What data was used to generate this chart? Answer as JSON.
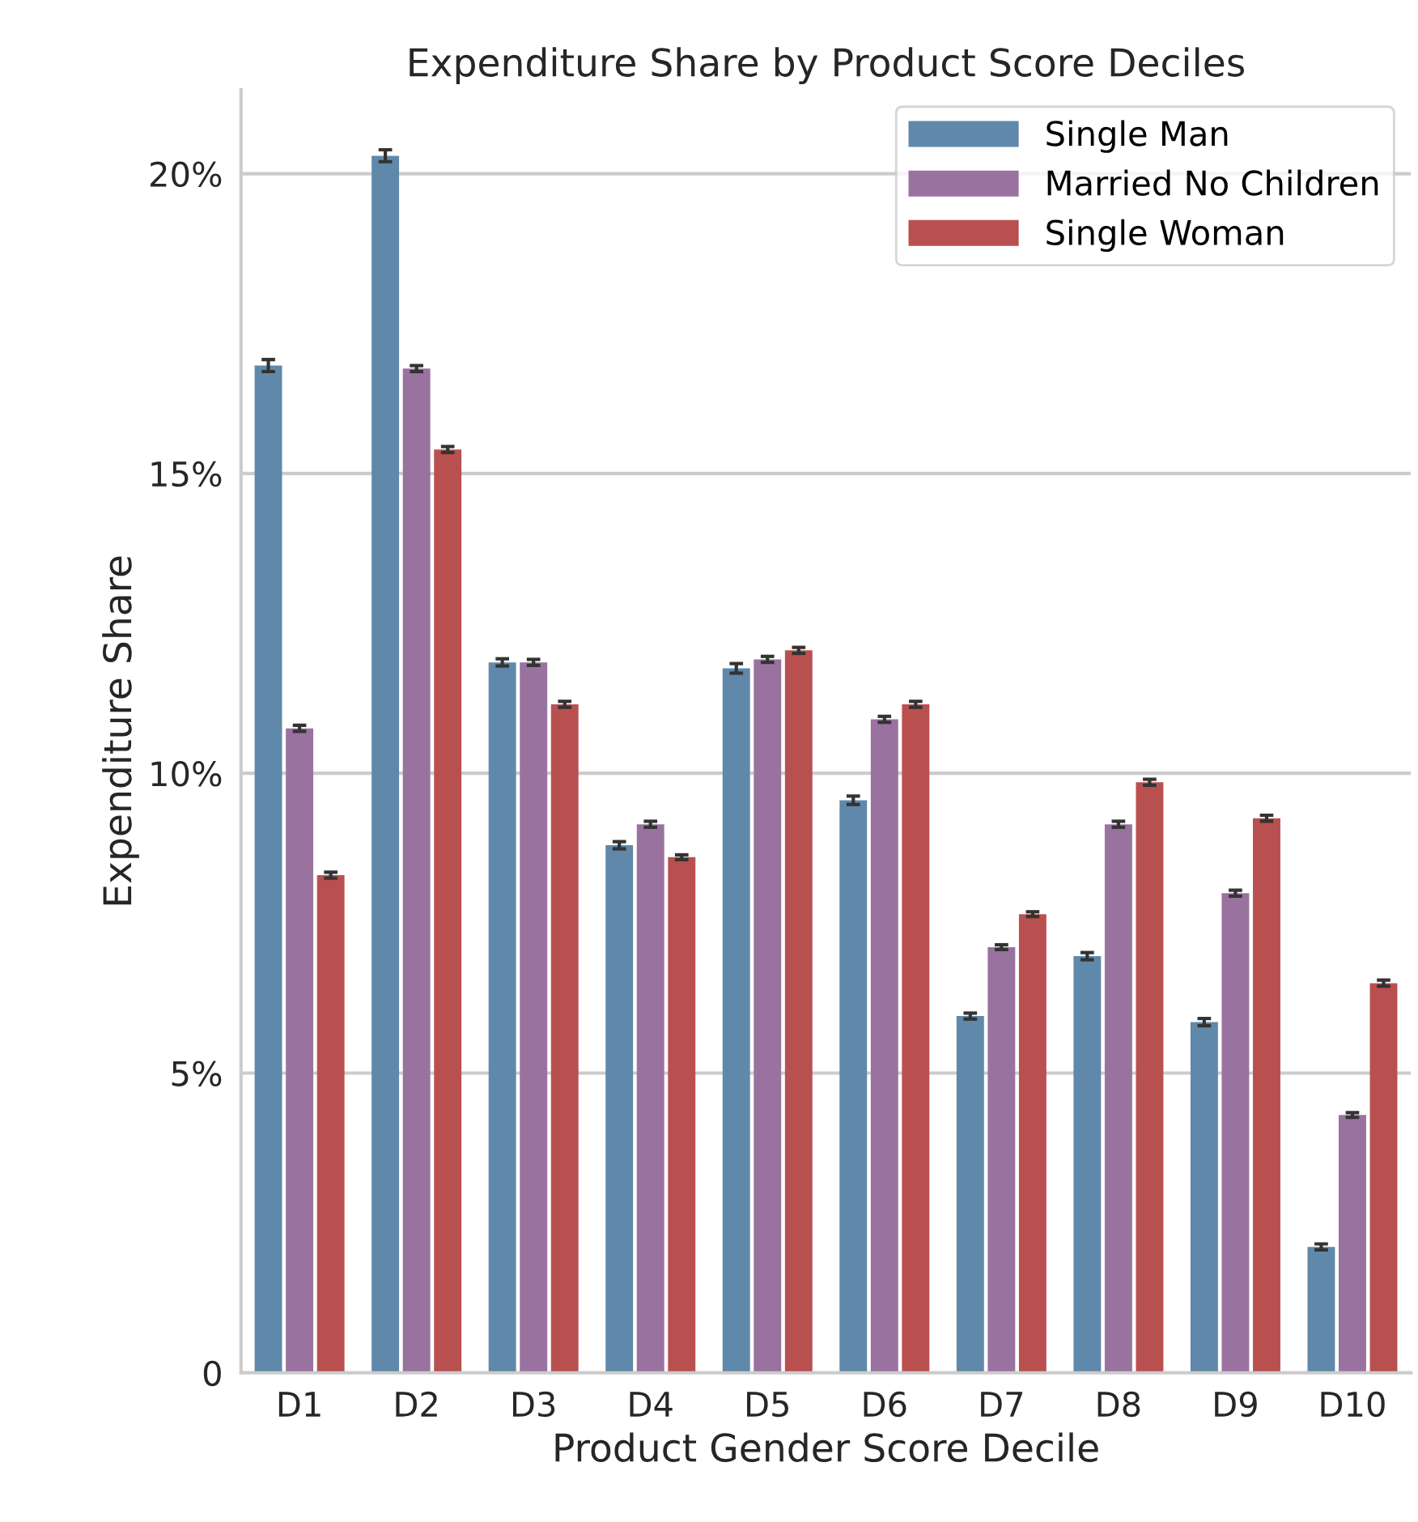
{
  "chart_data": {
    "type": "bar",
    "title": "Expenditure Share by Product Score Deciles",
    "xlabel": "Product Gender Score Decile",
    "ylabel": "Expenditure Share",
    "categories": [
      "D1",
      "D2",
      "D3",
      "D4",
      "D5",
      "D6",
      "D7",
      "D8",
      "D9",
      "D10"
    ],
    "series": [
      {
        "name": "Single Man",
        "color": "#6088aa",
        "values": [
          16.8,
          20.3,
          11.85,
          8.8,
          11.75,
          9.55,
          5.95,
          6.95,
          5.85,
          2.1
        ],
        "errors": [
          0.1,
          0.1,
          0.06,
          0.06,
          0.08,
          0.07,
          0.05,
          0.06,
          0.06,
          0.05
        ]
      },
      {
        "name": "Married No Children",
        "color": "#9a72a0",
        "values": [
          10.75,
          16.75,
          11.85,
          9.15,
          11.9,
          10.9,
          7.1,
          9.15,
          8.0,
          4.3
        ],
        "errors": [
          0.05,
          0.05,
          0.05,
          0.05,
          0.05,
          0.05,
          0.04,
          0.05,
          0.05,
          0.04
        ]
      },
      {
        "name": "Single Woman",
        "color": "#b95050",
        "values": [
          8.3,
          15.4,
          11.15,
          8.6,
          12.05,
          11.15,
          7.65,
          9.85,
          9.25,
          6.5
        ],
        "errors": [
          0.05,
          0.05,
          0.05,
          0.04,
          0.05,
          0.05,
          0.04,
          0.05,
          0.05,
          0.05
        ]
      }
    ],
    "ylim": [
      0,
      21.4
    ],
    "yticks": [
      0,
      {
        "value": 5,
        "label": "5%"
      },
      {
        "value": 10,
        "label": "10%"
      },
      {
        "value": 15,
        "label": "15%"
      },
      {
        "value": 20,
        "label": "20%"
      }
    ],
    "grid": "y",
    "legend": "top right"
  }
}
